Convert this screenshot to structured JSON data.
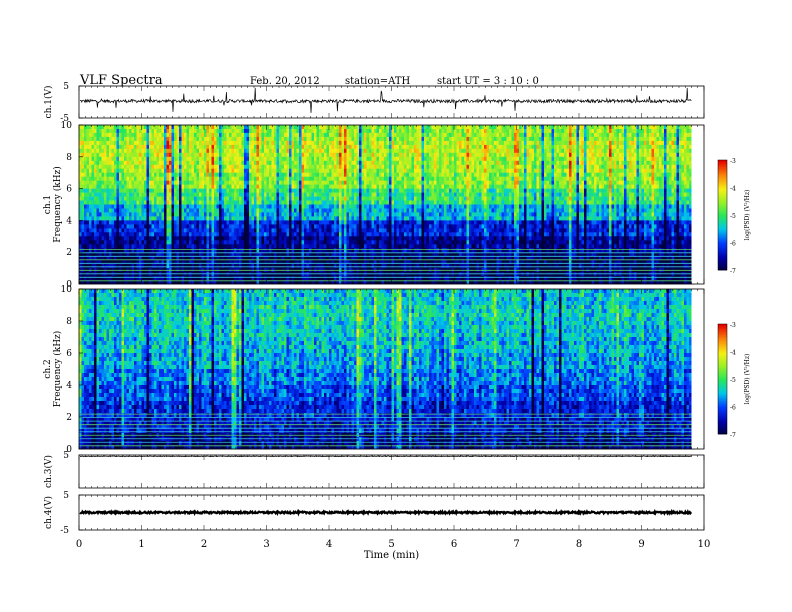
{
  "header": {
    "title": "VLF  Spectra",
    "date": "Feb. 20, 2012",
    "station": "station=ATH",
    "start": "start  UT  =   3  : 10 : 0"
  },
  "chart_data": [
    {
      "type": "line",
      "panel": "waveform",
      "ylabel": "ch.1(V)",
      "yticks": [
        "5",
        "-5"
      ],
      "ylim": [
        -5,
        5
      ],
      "x_range_min": [
        0,
        9.8
      ],
      "baseline_v": 0.3,
      "noise_amplitude_v": 0.5,
      "spike_amplitude_v": 4
    },
    {
      "type": "heatmap",
      "panel": "spectrogram",
      "ylabel": "Frequency  (kHz)",
      "ylabel2": "ch.1",
      "yticks": [
        "0",
        "2",
        "4",
        "6",
        "8",
        "10"
      ],
      "ylim": [
        0,
        10
      ],
      "x_range_min": [
        0,
        9.8
      ],
      "colorbar": {
        "label": "log(PSD) (V²/Hz)",
        "ticks": [
          "-3",
          "-4",
          "-5",
          "-6",
          "-7"
        ],
        "range": [
          -7,
          -3
        ]
      },
      "levels_by_frequency_khz": [
        {
          "f": 0.5,
          "log_psd": -6.9
        },
        {
          "f": 1.5,
          "log_psd": -6.8
        },
        {
          "f": 2.5,
          "log_psd": -6.6
        },
        {
          "f": 3.5,
          "log_psd": -6.2
        },
        {
          "f": 4.5,
          "log_psd": -5.5
        },
        {
          "f": 5.5,
          "log_psd": -5.0
        },
        {
          "f": 6.5,
          "log_psd": -4.6
        },
        {
          "f": 7.5,
          "log_psd": -4.4
        },
        {
          "f": 8.5,
          "log_psd": -4.3
        },
        {
          "f": 9.5,
          "log_psd": -4.5
        }
      ]
    },
    {
      "type": "heatmap",
      "panel": "spectrogram",
      "ylabel": "Frequency  (kHz)",
      "ylabel2": "ch.2",
      "yticks": [
        "0",
        "2",
        "4",
        "6",
        "8",
        "10"
      ],
      "ylim": [
        0,
        10
      ],
      "x_range_min": [
        0,
        9.8
      ],
      "colorbar": {
        "label": "log(PSD) (V²/Hz)",
        "ticks": [
          "-3",
          "-4",
          "-5",
          "-6",
          "-7"
        ],
        "range": [
          -7,
          -3
        ]
      },
      "levels_by_frequency_khz": [
        {
          "f": 0.5,
          "log_psd": -6.7
        },
        {
          "f": 1.5,
          "log_psd": -6.4
        },
        {
          "f": 2.5,
          "log_psd": -6.2
        },
        {
          "f": 3.5,
          "log_psd": -6.0
        },
        {
          "f": 4.5,
          "log_psd": -5.8
        },
        {
          "f": 5.5,
          "log_psd": -5.6
        },
        {
          "f": 6.5,
          "log_psd": -5.5
        },
        {
          "f": 7.5,
          "log_psd": -5.4
        },
        {
          "f": 8.5,
          "log_psd": -5.3
        },
        {
          "f": 9.5,
          "log_psd": -5.4
        }
      ]
    },
    {
      "type": "line",
      "panel": "waveform",
      "ylabel": "ch.3(V)",
      "yticks": [
        "5"
      ],
      "ylim": [
        -5,
        5
      ],
      "x_range_min": [
        0,
        9.8
      ],
      "baseline_v": 4.6,
      "noise_amplitude_v": 0.1,
      "spike_amplitude_v": 0
    },
    {
      "type": "line",
      "panel": "waveform",
      "ylabel": "ch.4(V)",
      "yticks": [
        "5",
        "-5"
      ],
      "ylim": [
        -5,
        5
      ],
      "x_range_min": [
        0,
        9.8
      ],
      "baseline_v": 0.0,
      "noise_amplitude_v": 0.25,
      "spike_amplitude_v": 0,
      "xlabel": "Time  (min)",
      "xticks": [
        "0",
        "1",
        "2",
        "3",
        "4",
        "5",
        "6",
        "7",
        "8",
        "9",
        "10"
      ],
      "xlim": [
        0,
        10
      ]
    }
  ]
}
